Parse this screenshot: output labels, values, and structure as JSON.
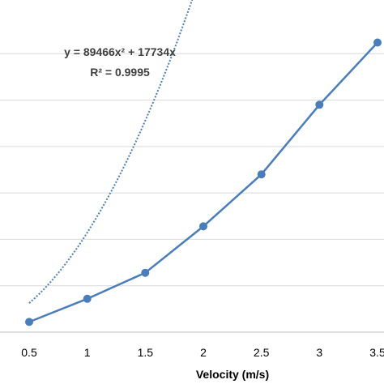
{
  "chart_data": {
    "type": "scatter",
    "x": [
      0.5,
      1,
      1.5,
      2,
      2.5,
      3,
      3.5
    ],
    "series": [
      {
        "values": [
          11000,
          36000,
          64000,
          114000,
          170000,
          245000,
          312000
        ],
        "color": "#4a7ebb",
        "line": "solid",
        "markers": true
      },
      {
        "fit": "polynomial-2",
        "color": "#4a7ebb",
        "line": "dotted",
        "markers": false
      }
    ],
    "x_ticks": [
      "0.5",
      "1",
      "1.5",
      "2",
      "2.5",
      "3",
      "3.5"
    ],
    "xlim": [
      0.5,
      3.5
    ],
    "ylim": [
      0,
      350000
    ],
    "y_gridlines": [
      0,
      50000,
      100000,
      150000,
      200000,
      250000,
      300000
    ],
    "grid": true,
    "xlabel": "Velocity (m/s)",
    "annotations": {
      "equation": "y = 89466x² + 17734x",
      "r_squared": "R² = 0.9995"
    },
    "fit_coefficients": {
      "a": 89466,
      "b": 17734
    }
  }
}
